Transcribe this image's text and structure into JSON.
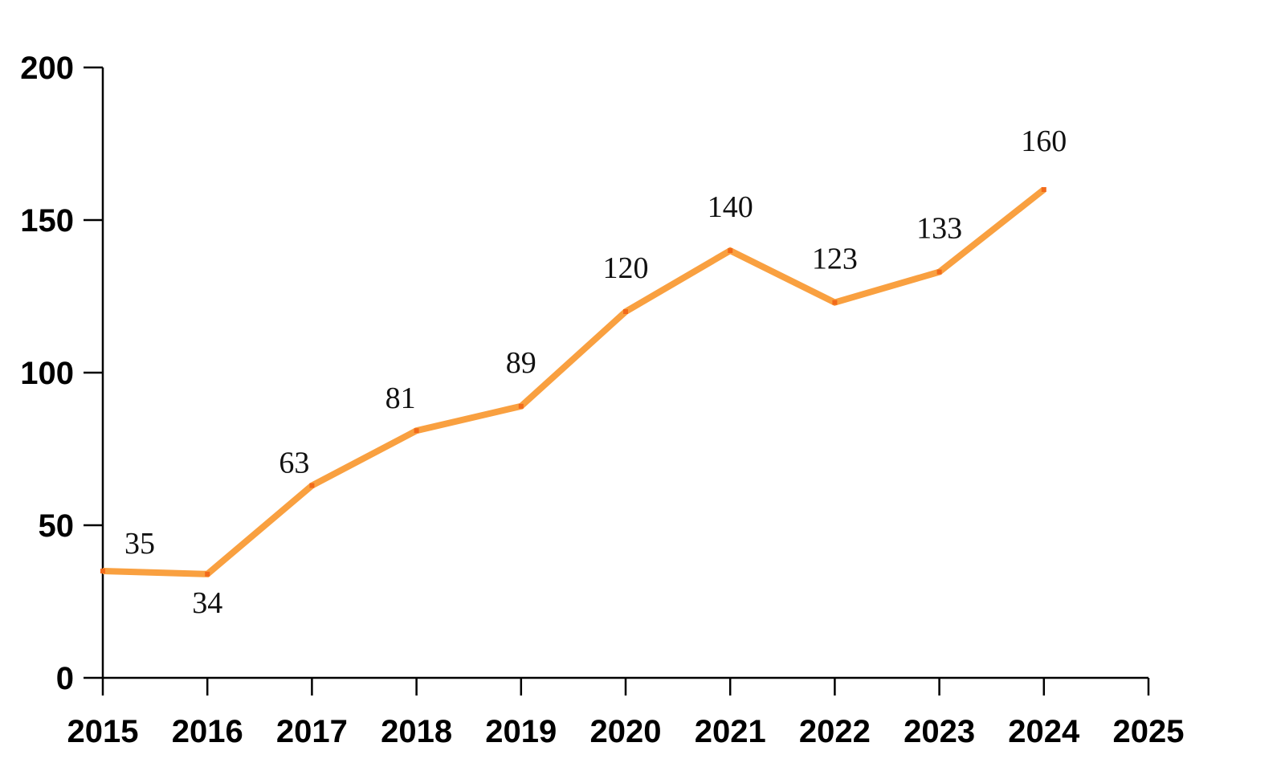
{
  "chart_data": {
    "type": "line",
    "x": [
      2015,
      2016,
      2017,
      2018,
      2019,
      2020,
      2021,
      2022,
      2023,
      2024
    ],
    "series": [
      {
        "values": [
          35,
          34,
          63,
          81,
          89,
          120,
          140,
          123,
          133,
          160
        ],
        "data_labels": [
          "35",
          "34",
          "63",
          "81",
          "89",
          "120",
          "140",
          "123",
          "133",
          "160"
        ]
      }
    ],
    "x_ticks": [
      "2015",
      "2016",
      "2017",
      "2018",
      "2019",
      "2020",
      "2021",
      "2022",
      "2023",
      "2024",
      "2025"
    ],
    "y_ticks": [
      "0",
      "50",
      "100",
      "150",
      "200"
    ],
    "xlim": [
      2015,
      2025
    ],
    "ylim": [
      0,
      200
    ],
    "title": "",
    "xlabel": "",
    "ylabel": "",
    "grid": false,
    "legend": "none",
    "colors": {
      "line": "#F9A040",
      "marker": "#F26A1B",
      "axis": "#000000"
    }
  }
}
